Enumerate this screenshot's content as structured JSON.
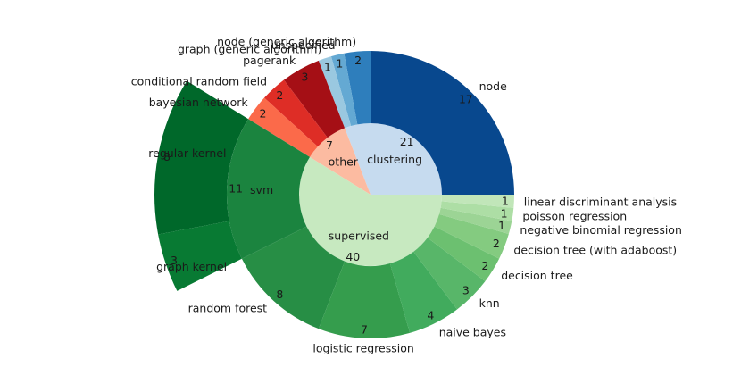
{
  "chart_data": {
    "type": "sunburst",
    "title": "",
    "inner": [
      {
        "label": "clustering",
        "value": 21,
        "color": "#c6dbef"
      },
      {
        "label": "other",
        "value": 7,
        "color": "#fcbba1"
      },
      {
        "label": "supervised",
        "value": 40,
        "color": "#c7e9c0"
      }
    ],
    "outer": [
      {
        "label": "node",
        "value": 17,
        "parent": "clustering",
        "color": "#08488e",
        "value_color": "#ffffff"
      },
      {
        "label": "node (generic algorithm)",
        "value": 2,
        "parent": "clustering",
        "color": "#2e7ebc",
        "value_color": "#ffffff"
      },
      {
        "label": "unspecified",
        "value": 1,
        "parent": "clustering",
        "color": "#64a9d3",
        "value_color": "#1a1a1a"
      },
      {
        "label": "graph (generic algorithm)",
        "value": 1,
        "parent": "clustering",
        "color": "#9ac8e0",
        "value_color": "#1a1a1a"
      },
      {
        "label": "pagerank",
        "value": 3,
        "parent": "other",
        "color": "#a50f15",
        "value_color": "#ffffff"
      },
      {
        "label": "conditional random field",
        "value": 2,
        "parent": "other",
        "color": "#de2d26",
        "value_color": "#ffffff"
      },
      {
        "label": "bayesian network",
        "value": 2,
        "parent": "other",
        "color": "#fb6a4a",
        "value_color": "#1a1a1a"
      },
      {
        "label": "svm",
        "value": 11,
        "parent": "supervised",
        "color": "#1b843f",
        "value_color": "#ffffff",
        "inside_label": true
      },
      {
        "label": "random forest",
        "value": 8,
        "parent": "supervised",
        "color": "#278e45",
        "value_color": "#ffffff"
      },
      {
        "label": "logistic regression",
        "value": 7,
        "parent": "supervised",
        "color": "#359d4d",
        "value_color": "#1a1a1a"
      },
      {
        "label": "naive bayes",
        "value": 4,
        "parent": "supervised",
        "color": "#41ab5d",
        "value_color": "#1a1a1a"
      },
      {
        "label": "knn",
        "value": 3,
        "parent": "supervised",
        "color": "#58b669",
        "value_color": "#1a1a1a"
      },
      {
        "label": "decision tree",
        "value": 2,
        "parent": "supervised",
        "color": "#6cc070",
        "value_color": "#1a1a1a"
      },
      {
        "label": "decision tree (with adaboost)",
        "value": 2,
        "parent": "supervised",
        "color": "#84cb80",
        "value_color": "#1a1a1a"
      },
      {
        "label": "negative binomial regression",
        "value": 1,
        "parent": "supervised",
        "color": "#9cd495",
        "value_color": "#1a1a1a"
      },
      {
        "label": "poisson regression",
        "value": 1,
        "parent": "supervised",
        "color": "#addea5",
        "value_color": "#1a1a1a"
      },
      {
        "label": "linear discriminant analysis",
        "value": 1,
        "parent": "supervised",
        "color": "#c1e6b9",
        "value_color": "#1a1a1a"
      }
    ],
    "third": [
      {
        "label": "regular kernel",
        "value": 8,
        "parent": "svm",
        "color": "#00682a",
        "value_color": "#ffffff"
      },
      {
        "label": "graph kernel",
        "value": 3,
        "parent": "svm",
        "color": "#087a33",
        "value_color": "#ffffff"
      }
    ]
  }
}
